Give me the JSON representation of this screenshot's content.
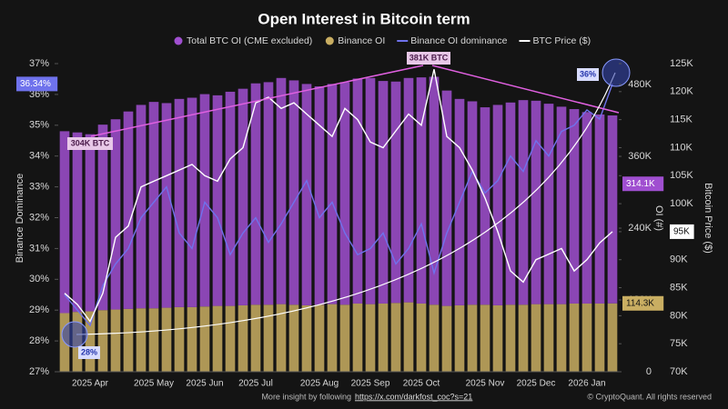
{
  "chart_data": {
    "type": "combo",
    "title": "Open Interest in Bitcoin term",
    "categories": [
      null,
      null,
      "2025 Apr",
      null,
      null,
      null,
      null,
      "2025 May",
      null,
      null,
      null,
      "2025 Jun",
      null,
      null,
      null,
      "2025 Jul",
      null,
      null,
      null,
      null,
      "2025 Aug",
      null,
      null,
      null,
      "2025 Sep",
      null,
      null,
      null,
      "2025 Oct",
      null,
      null,
      null,
      null,
      "2025 Nov",
      null,
      null,
      null,
      "2025 Dec",
      null,
      null,
      null,
      "2026 Jan",
      null,
      null
    ],
    "series": [
      {
        "name": "Total BTC OI (CME excluded)",
        "type": "bar",
        "axis": "y2",
        "color": "#a04fd0",
        "values": [
          304000,
          300000,
          296000,
          310000,
          318000,
          330000,
          340000,
          345000,
          342000,
          348000,
          350000,
          355000,
          352000,
          358000,
          362000,
          370000,
          372000,
          378000,
          375000,
          370000,
          365000,
          368000,
          372000,
          376000,
          378000,
          372000,
          370000,
          375000,
          378000,
          381000,
          360000,
          345000,
          340000,
          330000,
          335000,
          338000,
          342000,
          340000,
          335000,
          330000,
          325000,
          320000,
          316000,
          314100
        ],
        "last_value_label": "314.1K"
      },
      {
        "name": "Binance OI",
        "type": "bar",
        "axis": "y2",
        "color": "#c9ae62",
        "values": [
          98000,
          100000,
          101000,
          103000,
          104000,
          105000,
          106000,
          106000,
          107000,
          108000,
          108000,
          109000,
          110000,
          110000,
          111000,
          112000,
          112000,
          113000,
          112000,
          111000,
          112000,
          113000,
          112000,
          114000,
          113000,
          114000,
          115000,
          116000,
          114000,
          112000,
          110000,
          111000,
          112000,
          112000,
          111000,
          112000,
          112000,
          113000,
          113000,
          113000,
          114000,
          114000,
          114000,
          114300
        ],
        "last_value_label": "114.3K"
      },
      {
        "name": "Binance OI dominance",
        "type": "line",
        "axis": "y",
        "color": "#6f72ec",
        "values": [
          29.5,
          29.0,
          28.5,
          29.8,
          30.5,
          31.0,
          32.0,
          32.5,
          33.0,
          31.5,
          31.0,
          32.5,
          32.0,
          30.8,
          31.5,
          32.0,
          31.2,
          31.8,
          32.5,
          33.2,
          32.0,
          32.5,
          31.5,
          30.8,
          31.0,
          31.5,
          30.5,
          31.0,
          31.8,
          30.2,
          31.5,
          32.5,
          33.5,
          32.8,
          33.2,
          34.0,
          33.5,
          34.5,
          34.0,
          34.8,
          35.0,
          35.5,
          35.2,
          36.34
        ],
        "last_value_label": "36.34%"
      },
      {
        "name": "BTC Price ($)",
        "type": "line",
        "axis": "y3",
        "color": "#ffffff",
        "values": [
          84000,
          82000,
          79000,
          84000,
          94000,
          96000,
          103000,
          104000,
          105000,
          106000,
          107000,
          105000,
          104000,
          108000,
          110000,
          118000,
          119000,
          117000,
          118000,
          116000,
          114000,
          112000,
          117000,
          115000,
          111000,
          110000,
          113000,
          116000,
          114000,
          124000,
          112000,
          110000,
          106000,
          101000,
          95000,
          88000,
          86000,
          90000,
          91000,
          92000,
          88000,
          90000,
          93000,
          95000
        ],
        "last_value_label": "95K"
      }
    ],
    "y_label": "Binance Dominance",
    "ylim": [
      27,
      37
    ],
    "yticks": [
      {
        "value": 27,
        "label": "27%"
      },
      {
        "value": 28,
        "label": "28%"
      },
      {
        "value": 29,
        "label": "29%"
      },
      {
        "value": 30,
        "label": "30%"
      },
      {
        "value": 31,
        "label": "31%"
      },
      {
        "value": 32,
        "label": "32%"
      },
      {
        "value": 33,
        "label": "33%"
      },
      {
        "value": 34,
        "label": "34%"
      },
      {
        "value": 35,
        "label": "35%"
      },
      {
        "value": 36,
        "label": "36%"
      },
      {
        "value": 37,
        "label": "37%"
      }
    ],
    "y2_label": "OI (#)",
    "y2lim": [
      0,
      515000
    ],
    "y2ticks": [
      0,
      {
        "value": 120000,
        "label": "120K"
      },
      {
        "value": 240000,
        "label": "240K"
      },
      {
        "value": 360000,
        "label": "360K"
      },
      {
        "value": 480000,
        "label": "480K"
      }
    ],
    "y3_label": "Bitcoin Price ($)",
    "y3lim": [
      70000,
      125000
    ],
    "y3ticks": [
      {
        "value": 70000,
        "label": "70K"
      },
      {
        "value": 75000,
        "label": "75K"
      },
      {
        "value": 80000,
        "label": "80K"
      },
      {
        "value": 85000,
        "label": "85K"
      },
      {
        "value": 90000,
        "label": "90K"
      },
      {
        "value": 95000,
        "label": "95K"
      },
      {
        "value": 100000,
        "label": "100K"
      },
      {
        "value": 105000,
        "label": "105K"
      },
      {
        "value": 110000,
        "label": "110K"
      },
      {
        "value": 115000,
        "label": "115K"
      },
      {
        "value": 120000,
        "label": "120K"
      },
      {
        "value": 125000,
        "label": "125K"
      }
    ],
    "annotations": [
      "304K BTC",
      "381K BTC",
      "36%",
      "28%"
    ],
    "footer": {
      "text": "More insight by following",
      "link": "https://x.com/darkfost_coc?s=21",
      "copyright": "© CryptoQuant. All rights reserved"
    }
  }
}
